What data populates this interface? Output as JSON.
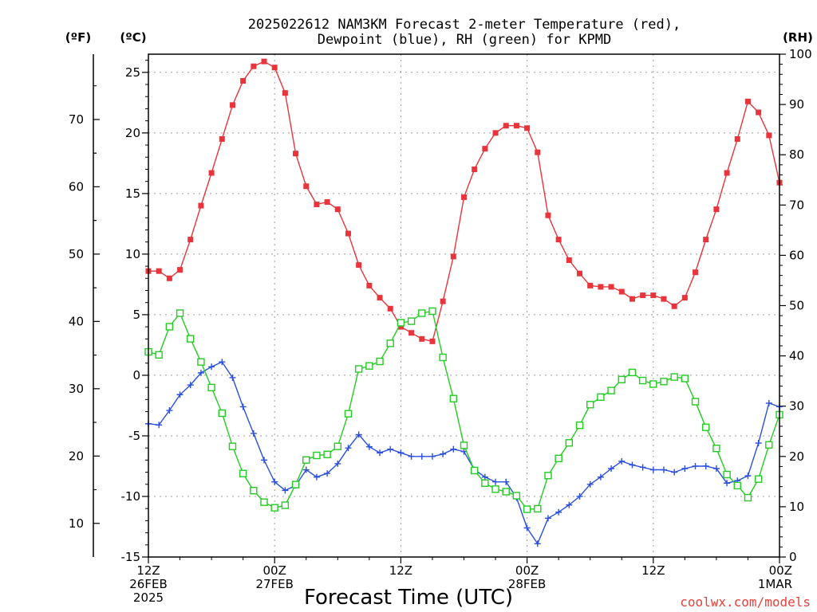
{
  "chart_data": {
    "type": "line",
    "title_lines": [
      "2025022612 NAM3KM Forecast 2-meter Temperature (red),",
      "Dewpoint (blue), RH (green) for KPMD"
    ],
    "unit_labels": {
      "fahrenheit": "(ºF)",
      "celsius": "(ºC)",
      "rh": "(RH)"
    },
    "xlabel": "Forecast Time (UTC)",
    "credit": "coolwx.com/models",
    "x_range_hours": [
      0,
      60
    ],
    "x_ticks": [
      {
        "hour": 0,
        "lines": [
          "12Z",
          "26FEB",
          "2025"
        ]
      },
      {
        "hour": 12,
        "lines": [
          "00Z",
          "27FEB"
        ]
      },
      {
        "hour": 24,
        "lines": [
          "12Z"
        ]
      },
      {
        "hour": 36,
        "lines": [
          "00Z",
          "28FEB"
        ]
      },
      {
        "hour": 48,
        "lines": [
          "12Z"
        ]
      },
      {
        "hour": 60,
        "lines": [
          "00Z",
          "1MAR"
        ]
      }
    ],
    "celsius_axis": {
      "range": [
        -15,
        26.5
      ],
      "ticks": [
        "-15",
        "-10",
        "-5",
        "0",
        "5",
        "10",
        "15",
        "20",
        "25"
      ]
    },
    "fahrenheit_ticks": [
      "10",
      "20",
      "30",
      "40",
      "50",
      "60",
      "70"
    ],
    "rh_axis": {
      "range": [
        0,
        100
      ],
      "ticks": [
        "0",
        "10",
        "20",
        "30",
        "40",
        "50",
        "60",
        "70",
        "80",
        "90",
        "100"
      ]
    },
    "grid": true,
    "x_hours": [
      0,
      1,
      2,
      3,
      4,
      5,
      6,
      7,
      8,
      9,
      10,
      11,
      12,
      13,
      14,
      15,
      16,
      17,
      18,
      19,
      20,
      21,
      22,
      23,
      24,
      25,
      26,
      27,
      28,
      29,
      30,
      31,
      32,
      33,
      34,
      35,
      36,
      37,
      38,
      39,
      40,
      41,
      42,
      43,
      44,
      45,
      46,
      47,
      48,
      49,
      50,
      51,
      52,
      53,
      54,
      55,
      56,
      57,
      58,
      59,
      60
    ],
    "series": [
      {
        "name": "Temperature",
        "color": "#e8343a",
        "axis": "celsius",
        "marker": "filled-square",
        "values": [
          8.6,
          8.6,
          8.0,
          8.7,
          11.2,
          14.0,
          16.7,
          19.5,
          22.3,
          24.3,
          25.5,
          25.9,
          25.4,
          23.3,
          18.3,
          15.6,
          14.1,
          14.3,
          13.7,
          11.7,
          9.1,
          7.4,
          6.4,
          5.5,
          4.0,
          3.5,
          3.0,
          2.8,
          6.1,
          9.8,
          14.7,
          17.0,
          18.7,
          20.0,
          20.6,
          20.6,
          20.4,
          18.4,
          13.2,
          11.2,
          9.5,
          8.4,
          7.4,
          7.3,
          7.3,
          6.9,
          6.3,
          6.6,
          6.6,
          6.3,
          5.7,
          6.4,
          8.5,
          11.2,
          13.7,
          16.7,
          19.5,
          22.6,
          21.7,
          19.8,
          15.9
        ]
      },
      {
        "name": "Dewpoint",
        "color": "#2a4fe0",
        "axis": "celsius",
        "marker": "plus",
        "values": [
          -4.0,
          -4.1,
          -2.9,
          -1.6,
          -0.8,
          0.2,
          0.7,
          1.1,
          -0.2,
          -2.6,
          -4.8,
          -7.0,
          -8.8,
          -9.5,
          -9.1,
          -7.8,
          -8.4,
          -8.1,
          -7.3,
          -6.0,
          -4.9,
          -5.9,
          -6.4,
          -6.1,
          -6.4,
          -6.7,
          -6.7,
          -6.7,
          -6.5,
          -6.1,
          -6.3,
          -7.8,
          -8.4,
          -8.8,
          -8.8,
          -10.1,
          -12.6,
          -13.9,
          -11.8,
          -11.3,
          -10.7,
          -10.0,
          -9.0,
          -8.4,
          -7.7,
          -7.1,
          -7.4,
          -7.6,
          -7.8,
          -7.8,
          -8.0,
          -7.7,
          -7.5,
          -7.5,
          -7.7,
          -8.9,
          -8.7,
          -8.3,
          -5.6,
          -2.3,
          -2.6
        ]
      },
      {
        "name": "RH",
        "color": "#22cc22",
        "axis": "rh",
        "marker": "open-square",
        "values": [
          40.8,
          40.2,
          45.8,
          48.5,
          43.4,
          38.8,
          33.7,
          28.6,
          22.0,
          16.6,
          13.2,
          10.9,
          9.8,
          10.3,
          14.4,
          19.3,
          20.2,
          20.4,
          22.0,
          28.5,
          37.4,
          38.0,
          38.9,
          42.5,
          46.6,
          46.9,
          48.5,
          48.9,
          39.7,
          31.5,
          22.2,
          17.2,
          14.7,
          13.5,
          13.0,
          12.2,
          9.5,
          9.6,
          16.2,
          19.6,
          22.7,
          26.2,
          30.3,
          31.8,
          33.1,
          35.3,
          36.7,
          35.1,
          34.4,
          34.9,
          35.8,
          35.5,
          30.9,
          25.8,
          21.6,
          16.4,
          14.2,
          11.8,
          15.5,
          22.3,
          28.3
        ]
      }
    ]
  }
}
